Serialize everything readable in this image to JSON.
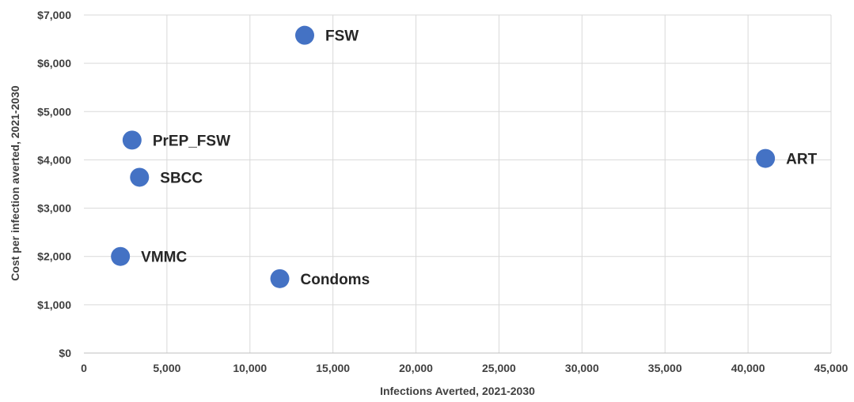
{
  "chart_data": {
    "type": "scatter",
    "title": "",
    "xlabel": "Infections Averted, 2021-2030",
    "ylabel": "Cost per infection averted, 2021-2030",
    "xlim": [
      0,
      45000
    ],
    "ylim": [
      0,
      7000
    ],
    "x_ticks": [
      0,
      5000,
      10000,
      15000,
      20000,
      25000,
      30000,
      35000,
      40000,
      45000
    ],
    "x_tick_labels": [
      "0",
      "5,000",
      "10,000",
      "15,000",
      "20,000",
      "25,000",
      "30,000",
      "35,000",
      "40,000",
      "45,000"
    ],
    "y_ticks": [
      0,
      1000,
      2000,
      3000,
      4000,
      5000,
      6000,
      7000
    ],
    "y_tick_labels": [
      "$0",
      "$1,000",
      "$2,000",
      "$3,000",
      "$4,000",
      "$5,000",
      "$6,000",
      "$7,000"
    ],
    "grid": "vertical-and-horizontal",
    "marker_color": "#4472c4",
    "points": [
      {
        "label": "FSW",
        "x": 13300,
        "y": 6580
      },
      {
        "label": "PrEP_FSW",
        "x": 2900,
        "y": 4410
      },
      {
        "label": "SBCC",
        "x": 3350,
        "y": 3640
      },
      {
        "label": "ART",
        "x": 41050,
        "y": 4030
      },
      {
        "label": "VMMC",
        "x": 2200,
        "y": 2000
      },
      {
        "label": "Condoms",
        "x": 11800,
        "y": 1540
      }
    ]
  }
}
